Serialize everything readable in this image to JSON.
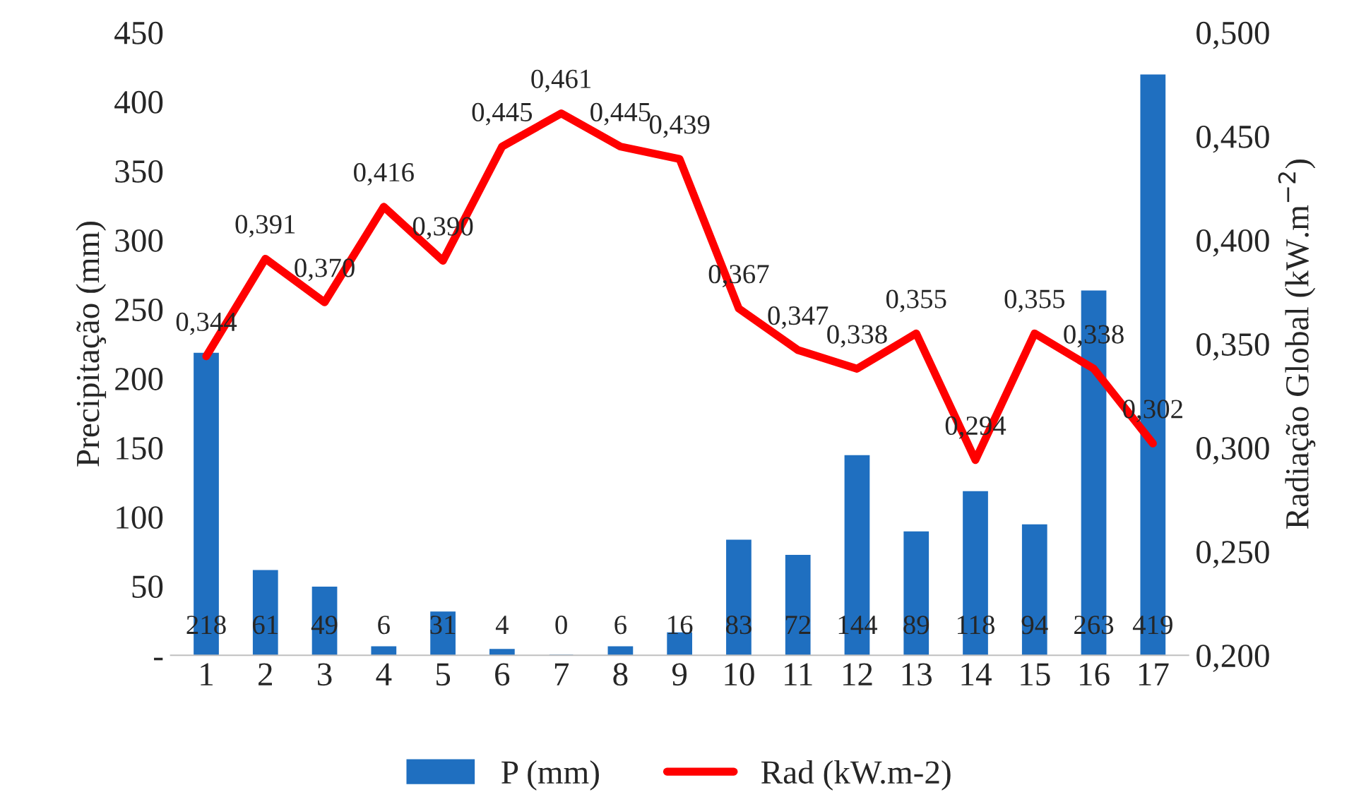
{
  "chart_data": {
    "type": "bar",
    "ylabel": "Precipitação (mm)",
    "y2label": "Radiação Global (kW.m$^{−2}$)",
    "categories": [
      "1",
      "2",
      "3",
      "4",
      "5",
      "6",
      "7",
      "8",
      "9",
      "10",
      "11",
      "12",
      "13",
      "14",
      "15",
      "16",
      "17"
    ],
    "series": [
      {
        "name": "P (mm)",
        "color": "#1f6fc0",
        "values": [
          218,
          61,
          49,
          6,
          31,
          4,
          0,
          6,
          16,
          83,
          72,
          144,
          89,
          118,
          94,
          263,
          419
        ],
        "value_labels": [
          "218",
          "61",
          "49",
          "6",
          "31",
          "4",
          "0",
          "6",
          "16",
          "83",
          "72",
          "144",
          "89",
          "118",
          "94",
          "263",
          "419"
        ]
      },
      {
        "name": "Rad (kW.m-2)",
        "type": "line",
        "axis": "y2",
        "color": "#ff0000",
        "values": [
          0.344,
          0.391,
          0.37,
          0.416,
          0.39,
          0.445,
          0.461,
          0.445,
          0.439,
          0.367,
          0.347,
          0.338,
          0.355,
          0.294,
          0.355,
          0.338,
          0.302
        ],
        "value_labels": [
          "0,344",
          "0,391",
          "0,370",
          "0,416",
          "0,390",
          "0,445",
          "0,461",
          "0,445",
          "0,439",
          "0,367",
          "0,347",
          "0,338",
          "0,355",
          "0,294",
          "0,355",
          "0,338",
          "0,302"
        ]
      }
    ],
    "ylim": [
      0,
      450
    ],
    "yticks": [
      {
        "value": 0,
        "label": "-"
      },
      50,
      100,
      150,
      200,
      250,
      300,
      350,
      400,
      450
    ],
    "y2lim": [
      0.2,
      0.5
    ],
    "y2ticks": [
      {
        "value": 0.2,
        "label": "0,200"
      },
      {
        "value": 0.25,
        "label": "0,250"
      },
      {
        "value": 0.3,
        "label": "0,300"
      },
      {
        "value": 0.35,
        "label": "0,350"
      },
      {
        "value": 0.4,
        "label": "0,400"
      },
      {
        "value": 0.45,
        "label": "0,450"
      },
      {
        "value": 0.5,
        "label": "0,500"
      }
    ],
    "grid": false,
    "legend": "bottom",
    "marker": "none",
    "line_style": "solid"
  }
}
